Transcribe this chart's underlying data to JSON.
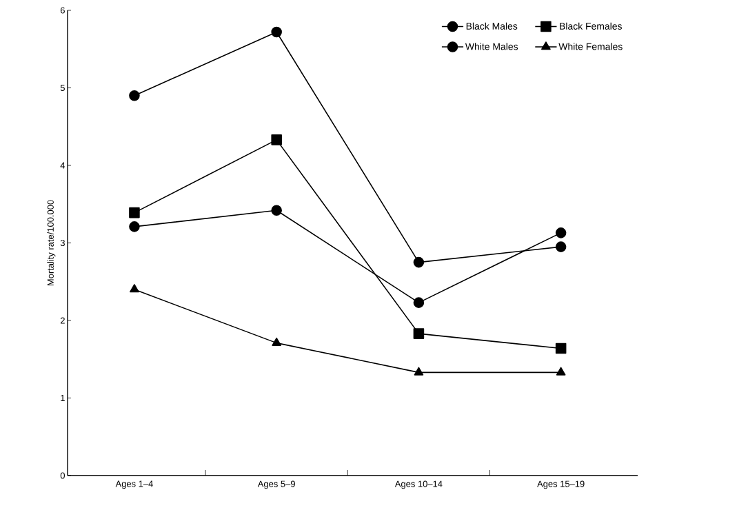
{
  "chart_data": {
    "type": "line",
    "ylabel": "Mortality rate/100.000",
    "categories": [
      "Ages 1–4",
      "Ages 5–9",
      "Ages 10–14",
      "Ages 15–19"
    ],
    "series": [
      {
        "name": "Black Males",
        "color": "#000000",
        "marker": "circle",
        "values": [
          4.9,
          5.72,
          2.75,
          2.95
        ]
      },
      {
        "name": "Black Females",
        "color": "#000000",
        "marker": "square",
        "values": [
          3.39,
          4.33,
          1.83,
          1.64
        ]
      },
      {
        "name": "White Males",
        "color": "#000000",
        "marker": "circle",
        "values": [
          3.21,
          3.42,
          2.23,
          3.13
        ]
      },
      {
        "name": "White Females",
        "color": "#000000",
        "marker": "triangle",
        "values": [
          2.4,
          1.71,
          1.33,
          1.33
        ]
      }
    ],
    "ylim": [
      0,
      6
    ],
    "yticks": [
      0,
      1,
      2,
      3,
      4,
      5,
      6
    ],
    "grid": false,
    "legend": "top right",
    "line_style": "solid"
  }
}
